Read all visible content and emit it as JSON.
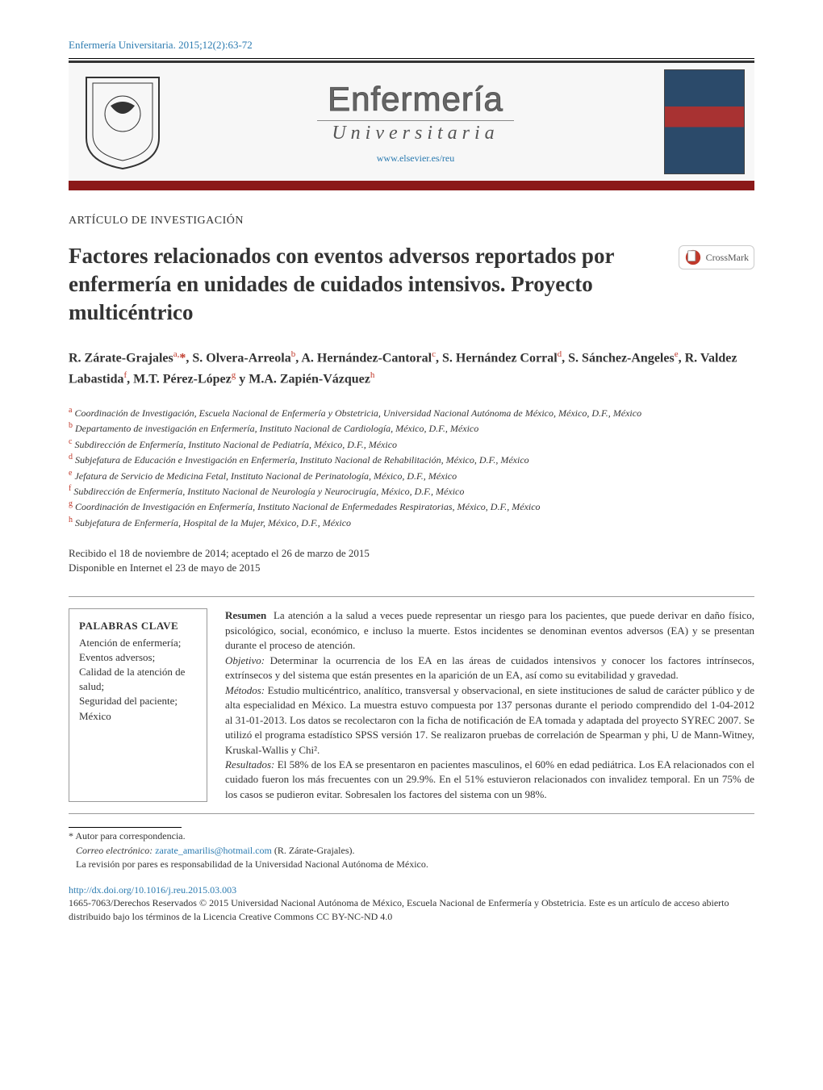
{
  "citation": "Enfermería Universitaria. 2015;12(2):63-72",
  "masthead": {
    "title": "Enfermería",
    "subtitle": "Universitaria",
    "url": "www.elsevier.es/reu"
  },
  "section_type": "ARTÍCULO DE INVESTIGACIÓN",
  "article_title": "Factores relacionados con eventos adversos reportados por enfermería en unidades de cuidados intensivos. Proyecto multicéntrico",
  "crossmark_label": "CrossMark",
  "authors_html": "R. Zárate-Grajales<sup>a,</sup><span class='corr'>*</span>, S. Olvera-Arreola<sup>b</sup>, A. Hernández-Cantoral<sup>c</sup>, S. Hernández Corral<sup>d</sup>, S. Sánchez-Angeles<sup>e</sup>, R. Valdez Labastida<sup>f</sup>, M.T. Pérez-López<sup>g</sup> y M.A. Zapién-Vázquez<sup>h</sup>",
  "affiliations": [
    {
      "s": "a",
      "t": "Coordinación de Investigación, Escuela Nacional de Enfermería y Obstetricia, Universidad Nacional Autónoma de México, México, D.F., México"
    },
    {
      "s": "b",
      "t": "Departamento de investigación en Enfermería, Instituto Nacional de Cardiología, México, D.F., México"
    },
    {
      "s": "c",
      "t": "Subdirección de Enfermería, Instituto Nacional de Pediatría, México, D.F., México"
    },
    {
      "s": "d",
      "t": "Subjefatura de Educación e Investigación en Enfermería, Instituto Nacional de Rehabilitación, México, D.F., México"
    },
    {
      "s": "e",
      "t": "Jefatura de Servicio de Medicina Fetal, Instituto Nacional de Perinatología, México, D.F., México"
    },
    {
      "s": "f",
      "t": "Subdirección de Enfermería, Instituto Nacional de Neurología y Neurocirugía, México, D.F., México"
    },
    {
      "s": "g",
      "t": "Coordinación de Investigación en Enfermería, Instituto Nacional de Enfermedades Respiratorias, México, D.F., México"
    },
    {
      "s": "h",
      "t": "Subjefatura de Enfermería, Hospital de la Mujer, México, D.F., México"
    }
  ],
  "dates": {
    "received": "Recibido el 18 de noviembre de 2014; aceptado el 26 de marzo de 2015",
    "online": "Disponible en Internet el 23 de mayo de 2015"
  },
  "keywords": {
    "head": "PALABRAS CLAVE",
    "list": "Atención de enfermería;\nEventos adversos;\nCalidad de la atención de salud;\nSeguridad del paciente;\nMéxico"
  },
  "abstract": {
    "head": "Resumen",
    "intro": "La atención a la salud a veces puede representar un riesgo para los pacientes, que puede derivar en daño físico, psicológico, social, económico, e incluso la muerte. Estos incidentes se denominan eventos adversos (EA) y se presentan durante el proceso de atención.",
    "objetivo_label": "Objetivo:",
    "objetivo": "Determinar la ocurrencia de los EA en las áreas de cuidados intensivos y conocer los factores intrínsecos, extrínsecos y del sistema que están presentes en la aparición de un EA, así como su evitabilidad y gravedad.",
    "metodos_label": "Métodos:",
    "metodos": "Estudio multicéntrico, analítico, transversal y observacional, en siete instituciones de salud de carácter público y de alta especialidad en México. La muestra estuvo compuesta por 137 personas durante el periodo comprendido del 1-04-2012 al 31-01-2013. Los datos se recolectaron con la ficha de notificación de EA tomada y adaptada del proyecto SYREC 2007. Se utilizó el programa estadístico SPSS versión 17. Se realizaron pruebas de correlación de Spearman y phi, U de Mann-Witney, Kruskal-Wallis y Chi².",
    "resultados_label": "Resultados:",
    "resultados": "El 58% de los EA se presentaron en pacientes masculinos, el 60% en edad pediátrica. Los EA relacionados con el cuidado fueron los más frecuentes con un 29.9%. En el 51% estuvieron relacionados con invalidez temporal. En un 75% de los casos se pudieron evitar. Sobresalen los factores del sistema con un 98%."
  },
  "footnotes": {
    "corr": "* Autor para correspondencia.",
    "email_label": "Correo electrónico:",
    "email": "zarate_amarilis@hotmail.com",
    "email_paren": "(R. Zárate-Grajales).",
    "peer": "La revisión por pares es responsabilidad de la Universidad Nacional Autónoma de México."
  },
  "doi": {
    "url": "http://dx.doi.org/10.1016/j.reu.2015.03.003",
    "copyright": "1665-7063/Derechos Reservados © 2015 Universidad Nacional Autónoma de México, Escuela Nacional de Enfermería y Obstetricia. Este es un artículo de acceso abierto distribuido bajo los términos de la Licencia Creative Commons CC BY-NC-ND 4.0"
  },
  "colors": {
    "link": "#2a7ab0",
    "brand_red": "#8b1a1a",
    "sup_red": "#c0392b"
  }
}
